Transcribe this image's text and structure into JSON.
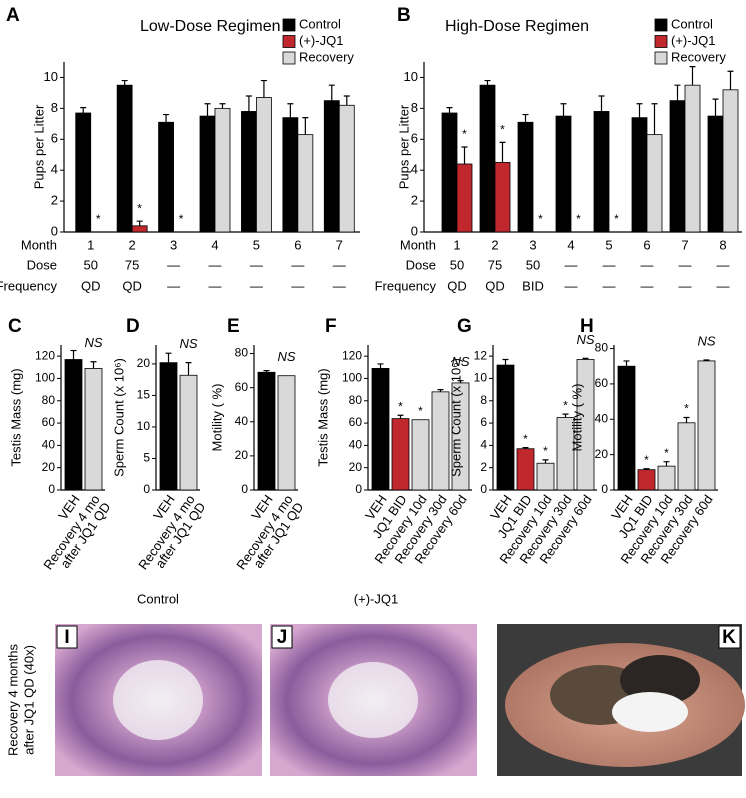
{
  "chart_data": [
    {
      "type": "grouped_bar",
      "panel": "A",
      "title": "Low-Dose Regimen",
      "y_label": "Pups per Litter",
      "x_label": "Month",
      "categories": [
        "1",
        "2",
        "3",
        "4",
        "5",
        "6",
        "7"
      ],
      "rows": [
        {
          "label": "Dose",
          "values": [
            "50",
            "75",
            "—",
            "—",
            "—",
            "—",
            "—"
          ]
        },
        {
          "label": "Frequency",
          "values": [
            "QD",
            "QD",
            "—",
            "—",
            "—",
            "—",
            "—"
          ]
        }
      ],
      "series": [
        {
          "name": "Control",
          "color": "#000000",
          "values": [
            7.7,
            9.5,
            7.1,
            7.5,
            7.8,
            7.4,
            8.5
          ],
          "errors": [
            0.35,
            0.3,
            0.5,
            0.8,
            1.0,
            0.9,
            1.0
          ]
        },
        {
          "name": "(+)-JQ1",
          "color": "#c0282d",
          "values": [
            0,
            0.4,
            0,
            null,
            null,
            null,
            null
          ],
          "errors": [
            null,
            0.3,
            null,
            null,
            null,
            null,
            null
          ],
          "significance": [
            "*",
            "*",
            "*",
            null,
            null,
            null,
            null
          ]
        },
        {
          "name": "Recovery",
          "color": "#d9d9d9",
          "values": [
            null,
            null,
            null,
            8.0,
            8.7,
            6.3,
            8.2
          ],
          "errors": [
            null,
            null,
            null,
            0.3,
            1.1,
            1.1,
            0.6
          ]
        }
      ],
      "ylim": [
        0,
        11
      ],
      "yticks": [
        0,
        2,
        4,
        6,
        8,
        10
      ]
    },
    {
      "type": "grouped_bar",
      "panel": "B",
      "title": "High-Dose Regimen",
      "y_label": "Pups per Litter",
      "x_label": "Month",
      "categories": [
        "1",
        "2",
        "3",
        "4",
        "5",
        "6",
        "7",
        "8"
      ],
      "rows": [
        {
          "label": "Dose",
          "values": [
            "50",
            "75",
            "50",
            "—",
            "—",
            "—",
            "—",
            "—"
          ]
        },
        {
          "label": "Frequency",
          "values": [
            "QD",
            "QD",
            "BID",
            "—",
            "—",
            "—",
            "—",
            "—"
          ]
        }
      ],
      "series": [
        {
          "name": "Control",
          "color": "#000000",
          "values": [
            7.7,
            9.5,
            7.1,
            7.5,
            7.8,
            7.4,
            8.5,
            7.5
          ],
          "errors": [
            0.35,
            0.3,
            0.5,
            0.8,
            1.0,
            0.9,
            1.0,
            1.1
          ]
        },
        {
          "name": "(+)-JQ1",
          "color": "#c0282d",
          "values": [
            4.4,
            4.5,
            0,
            0,
            0,
            null,
            null,
            null
          ],
          "errors": [
            1.1,
            1.3,
            null,
            null,
            null,
            null,
            null,
            null
          ],
          "significance": [
            "*",
            "*",
            "*",
            "*",
            "*",
            null,
            null,
            null
          ]
        },
        {
          "name": "Recovery",
          "color": "#d9d9d9",
          "values": [
            null,
            null,
            null,
            null,
            null,
            6.3,
            9.5,
            9.2
          ],
          "errors": [
            null,
            null,
            null,
            null,
            null,
            2.0,
            1.2,
            1.2
          ]
        }
      ],
      "ylim": [
        0,
        11
      ],
      "yticks": [
        0,
        2,
        4,
        6,
        8,
        10
      ]
    },
    {
      "type": "bar",
      "panel": "C",
      "y_label": "Testis Mass (mg)",
      "note": "NS",
      "categories": [
        "VEH",
        [
          "Recovery 4 mo",
          "after JQ1 QD"
        ]
      ],
      "values": [
        117,
        109
      ],
      "errors": [
        8,
        6
      ],
      "colors": [
        "#000000",
        "#d9d9d9"
      ],
      "ylim": [
        0,
        130
      ],
      "yticks": [
        0,
        20,
        40,
        60,
        80,
        100,
        120
      ]
    },
    {
      "type": "bar",
      "panel": "D",
      "y_label": "Sperm Count (x 10⁶)",
      "note": "NS",
      "categories": [
        "VEH",
        [
          "Recovery 4 mo",
          "after JQ1 QD"
        ]
      ],
      "values": [
        20.2,
        18.2
      ],
      "errors": [
        1.5,
        2.0
      ],
      "colors": [
        "#000000",
        "#d9d9d9"
      ],
      "ylim": [
        0,
        23
      ],
      "yticks": [
        0,
        5,
        10,
        15,
        20
      ]
    },
    {
      "type": "bar",
      "panel": "E",
      "y_label": "Motility ( %)",
      "note": "NS",
      "categories": [
        "VEH",
        [
          "Recovery 4 mo",
          "after JQ1 QD"
        ]
      ],
      "values": [
        69,
        67
      ],
      "errors": [
        1,
        null
      ],
      "colors": [
        "#000000",
        "#d9d9d9"
      ],
      "ylim": [
        0,
        85
      ],
      "yticks": [
        0,
        20,
        40,
        60,
        80
      ]
    },
    {
      "type": "bar",
      "panel": "F",
      "y_label": "Testis Mass (mg)",
      "note": "NS",
      "categories": [
        "VEH",
        "JQ1 BID",
        "Recovery 10d",
        "Recovery 30d",
        "Recovery 60d"
      ],
      "values": [
        109,
        64,
        63,
        88,
        96
      ],
      "errors": [
        4,
        3,
        null,
        2,
        2
      ],
      "significance": [
        null,
        "*",
        "*",
        null,
        null
      ],
      "colors": [
        "#000000",
        "#c0282d",
        "#d9d9d9",
        "#d9d9d9",
        "#d9d9d9"
      ],
      "ylim": [
        0,
        130
      ],
      "yticks": [
        0,
        20,
        40,
        60,
        80,
        100,
        120
      ]
    },
    {
      "type": "bar",
      "panel": "G",
      "y_label": "Sperm Count (x 10⁶)",
      "note": "NS",
      "categories": [
        "VEH",
        "JQ1 BID",
        "Recovery 10d",
        "Recovery 30d",
        "Recovery 60d"
      ],
      "values": [
        11.2,
        3.7,
        2.4,
        6.5,
        11.7
      ],
      "errors": [
        0.5,
        0.1,
        0.3,
        0.3,
        0.1
      ],
      "significance": [
        null,
        "*",
        "*",
        "*",
        null
      ],
      "colors": [
        "#000000",
        "#c0282d",
        "#d9d9d9",
        "#d9d9d9",
        "#d9d9d9"
      ],
      "ylim": [
        0,
        13
      ],
      "yticks": [
        0,
        2,
        4,
        6,
        8,
        10,
        12
      ]
    },
    {
      "type": "bar",
      "panel": "H",
      "y_label": "Motility ( %)",
      "note": "NS",
      "categories": [
        "VEH",
        "JQ1 BID",
        "Recovery 10d",
        "Recovery 30d",
        "Recovery 60d"
      ],
      "values": [
        70,
        11.5,
        13.5,
        38,
        73
      ],
      "errors": [
        3,
        0.5,
        2.5,
        3,
        0.5
      ],
      "significance": [
        null,
        "*",
        "*",
        "*",
        null
      ],
      "colors": [
        "#000000",
        "#c0282d",
        "#d9d9d9",
        "#d9d9d9",
        "#d9d9d9"
      ],
      "ylim": [
        0,
        82
      ],
      "yticks": [
        0,
        20,
        40,
        60,
        80
      ]
    }
  ],
  "images": [
    {
      "panel": "I",
      "caption": "Control"
    },
    {
      "panel": "J",
      "caption": "(+)-JQ1"
    },
    {
      "panel": "K"
    }
  ],
  "side_label": [
    "Recovery 4 months",
    "after JQ1 QD (40x)"
  ]
}
